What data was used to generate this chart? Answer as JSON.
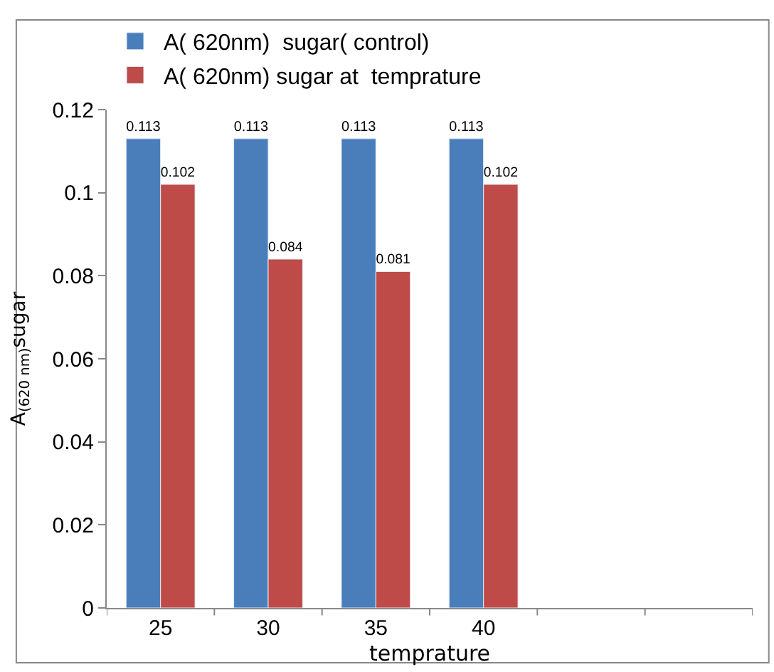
{
  "chart_data": {
    "type": "bar",
    "xlabel": "temprature",
    "ylabel": "A$_{(620 nm)}$sugar",
    "categories": [
      "25",
      "30",
      "35",
      "40",
      null,
      null
    ],
    "series": [
      {
        "name": "A( 620nm)  sugar( control)",
        "color": "#4a7ebb",
        "values": [
          0.113,
          0.113,
          0.113,
          0.113,
          null,
          null
        ]
      },
      {
        "name": "A( 620nm) sugar at  temprature",
        "color": "#be4b48",
        "values": [
          0.102,
          0.084,
          0.081,
          0.102,
          null,
          null
        ]
      }
    ],
    "ylim": [
      0,
      0.12
    ],
    "yticks": [
      0,
      0.02,
      0.04,
      0.06,
      0.08,
      0.1,
      0.12
    ],
    "data_labels": true,
    "legend": "top left"
  }
}
